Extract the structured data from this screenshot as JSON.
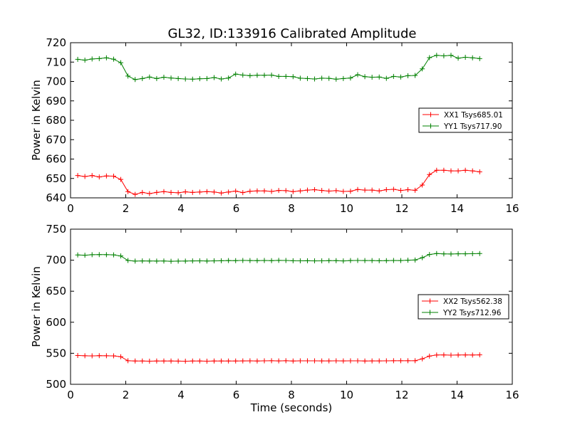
{
  "figure": {
    "title": "GL32, ID:133916 Calibrated Amplitude"
  },
  "colors": {
    "xx": "#ff0000",
    "yy": "#008000",
    "axes": "#000000",
    "background": "#ffffff"
  },
  "chart_data": [
    {
      "type": "line",
      "title": "GL32, ID:133916 Calibrated Amplitude",
      "xlabel": "",
      "ylabel": "Power in Kelvin",
      "xlim": [
        0,
        16
      ],
      "ylim": [
        640,
        720
      ],
      "xticks": [
        0,
        2,
        4,
        6,
        8,
        10,
        12,
        14,
        16
      ],
      "yticks": [
        640,
        650,
        660,
        670,
        680,
        690,
        700,
        710,
        720
      ],
      "grid": false,
      "legend_position": "right",
      "marker": "plus",
      "x": [
        0.26,
        0.52,
        0.78,
        1.04,
        1.3,
        1.56,
        1.82,
        2.08,
        2.34,
        2.6,
        2.86,
        3.12,
        3.38,
        3.64,
        3.9,
        4.16,
        4.42,
        4.68,
        4.94,
        5.2,
        5.46,
        5.72,
        5.98,
        6.24,
        6.5,
        6.76,
        7.02,
        7.28,
        7.54,
        7.8,
        8.06,
        8.32,
        8.58,
        8.84,
        9.1,
        9.36,
        9.62,
        9.88,
        10.14,
        10.4,
        10.66,
        10.92,
        11.18,
        11.44,
        11.7,
        11.96,
        12.22,
        12.48,
        12.74,
        13.0,
        13.26,
        13.52,
        13.78,
        14.04,
        14.3,
        14.56,
        14.82
      ],
      "series": [
        {
          "name": "XX1 Tsys685.01",
          "color": "#ff0000",
          "values": [
            651.5,
            651.0,
            651.5,
            650.8,
            651.3,
            651.2,
            649.5,
            643.2,
            641.8,
            642.8,
            642.2,
            642.8,
            643.2,
            642.8,
            642.6,
            643.1,
            642.8,
            643.0,
            643.2,
            643.0,
            642.5,
            643.0,
            643.5,
            642.7,
            643.4,
            643.6,
            643.6,
            643.3,
            643.8,
            643.7,
            643.2,
            643.6,
            644.0,
            644.2,
            643.8,
            643.5,
            643.7,
            643.3,
            643.4,
            644.3,
            644.0,
            644.0,
            643.6,
            644.2,
            644.4,
            643.8,
            644.2,
            643.9,
            646.6,
            652.0,
            654.2,
            654.2,
            653.9,
            653.9,
            654.2,
            653.9,
            653.4
          ]
        },
        {
          "name": "YY1 Tsys717.90",
          "color": "#008000",
          "values": [
            711.4,
            711.0,
            711.6,
            711.8,
            712.2,
            711.5,
            709.7,
            702.8,
            701.0,
            701.5,
            702.3,
            701.5,
            702.2,
            701.8,
            701.5,
            701.3,
            701.2,
            701.4,
            701.5,
            702.0,
            701.3,
            701.8,
            703.8,
            703.3,
            703.0,
            703.2,
            703.2,
            703.3,
            702.6,
            702.6,
            702.5,
            701.7,
            701.5,
            701.3,
            701.7,
            701.6,
            701.2,
            701.5,
            701.8,
            703.5,
            702.5,
            702.2,
            702.3,
            701.6,
            702.6,
            702.3,
            703.0,
            703.1,
            706.5,
            712.3,
            713.5,
            713.2,
            713.5,
            712.0,
            712.5,
            712.2,
            711.8
          ]
        }
      ]
    },
    {
      "type": "line",
      "title": "",
      "xlabel": "Time (seconds)",
      "ylabel": "Power in Kelvin",
      "xlim": [
        0,
        16
      ],
      "ylim": [
        500,
        750
      ],
      "xticks": [
        0,
        2,
        4,
        6,
        8,
        10,
        12,
        14,
        16
      ],
      "yticks": [
        500,
        550,
        600,
        650,
        700,
        750
      ],
      "grid": false,
      "legend_position": "right",
      "marker": "plus",
      "x": [
        0.26,
        0.52,
        0.78,
        1.04,
        1.3,
        1.56,
        1.82,
        2.08,
        2.34,
        2.6,
        2.86,
        3.12,
        3.38,
        3.64,
        3.9,
        4.16,
        4.42,
        4.68,
        4.94,
        5.2,
        5.46,
        5.72,
        5.98,
        6.24,
        6.5,
        6.76,
        7.02,
        7.28,
        7.54,
        7.8,
        8.06,
        8.32,
        8.58,
        8.84,
        9.1,
        9.36,
        9.62,
        9.88,
        10.14,
        10.4,
        10.66,
        10.92,
        11.18,
        11.44,
        11.7,
        11.96,
        12.22,
        12.48,
        12.74,
        13.0,
        13.26,
        13.52,
        13.78,
        14.04,
        14.3,
        14.56,
        14.82
      ],
      "series": [
        {
          "name": "XX2 Tsys562.38",
          "color": "#ff0000",
          "values": [
            546.5,
            546.0,
            545.8,
            546.2,
            546.0,
            545.8,
            544.5,
            538.0,
            537.5,
            537.5,
            537.3,
            537.6,
            537.5,
            537.5,
            537.4,
            537.2,
            537.5,
            537.6,
            537.3,
            537.6,
            537.5,
            537.6,
            537.6,
            537.7,
            537.8,
            537.6,
            537.9,
            538.0,
            537.7,
            538.0,
            537.6,
            537.9,
            537.8,
            537.9,
            537.7,
            537.7,
            537.8,
            537.7,
            537.9,
            537.8,
            537.6,
            537.7,
            537.7,
            537.9,
            538.0,
            538.0,
            538.0,
            538.0,
            541.0,
            545.5,
            547.2,
            547.3,
            547.0,
            547.2,
            547.3,
            547.2,
            547.4
          ]
        },
        {
          "name": "YY2 Tsys712.96",
          "color": "#008000",
          "values": [
            708.5,
            708.0,
            708.8,
            709.0,
            708.9,
            708.6,
            706.8,
            699.5,
            698.5,
            698.8,
            698.7,
            698.6,
            698.7,
            698.3,
            698.5,
            698.6,
            698.8,
            699.0,
            698.7,
            698.9,
            699.1,
            699.4,
            699.3,
            699.6,
            699.4,
            699.3,
            699.5,
            699.3,
            699.7,
            699.5,
            699.1,
            699.0,
            699.1,
            698.9,
            699.0,
            699.2,
            699.3,
            698.8,
            699.4,
            699.5,
            699.4,
            699.4,
            699.1,
            699.3,
            699.5,
            699.4,
            700.0,
            700.3,
            704.0,
            709.2,
            710.7,
            710.2,
            710.0,
            710.3,
            710.3,
            710.4,
            710.7
          ]
        }
      ]
    }
  ]
}
